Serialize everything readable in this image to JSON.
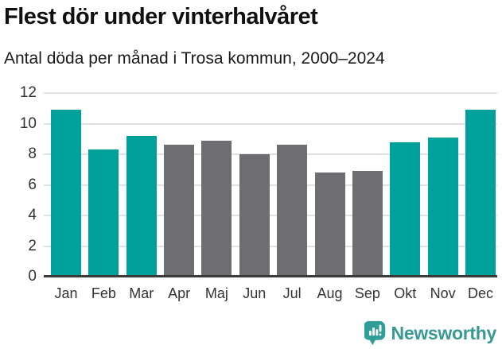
{
  "header": {
    "title": "Flest dör under vinterhalvåret",
    "subtitle": "Antal döda per månad i Trosa kommun, 2000–2024"
  },
  "chart_data": {
    "type": "bar",
    "title": "Flest dör under vinterhalvåret",
    "subtitle": "Antal döda per månad i Trosa kommun, 2000–2024",
    "categories": [
      "Jan",
      "Feb",
      "Mar",
      "Apr",
      "Maj",
      "Jun",
      "Jul",
      "Aug",
      "Sep",
      "Okt",
      "Nov",
      "Dec"
    ],
    "values": [
      10.9,
      8.3,
      9.2,
      8.6,
      8.9,
      8.0,
      8.6,
      6.8,
      6.9,
      8.8,
      9.1,
      10.9
    ],
    "highlighted": [
      true,
      true,
      true,
      false,
      false,
      false,
      false,
      false,
      false,
      true,
      true,
      true
    ],
    "xlabel": "",
    "ylabel": "",
    "ylim": [
      0,
      12
    ],
    "yticks": [
      0,
      2,
      4,
      6,
      8,
      10,
      12
    ],
    "grid": "horizontal",
    "legend": "none",
    "colors": {
      "highlight": "#00a19a",
      "default": "#6e6e72",
      "gridline": "#e1e1e1",
      "axis_line": "#3a3a3a",
      "tick_label": "#333333"
    }
  },
  "footer": {
    "brand": "Newsworthy",
    "brand_color": "#399a94",
    "badge_color": "#2f9e98",
    "logo_icon": "newsworthy-bar-chart-badge-icon"
  }
}
